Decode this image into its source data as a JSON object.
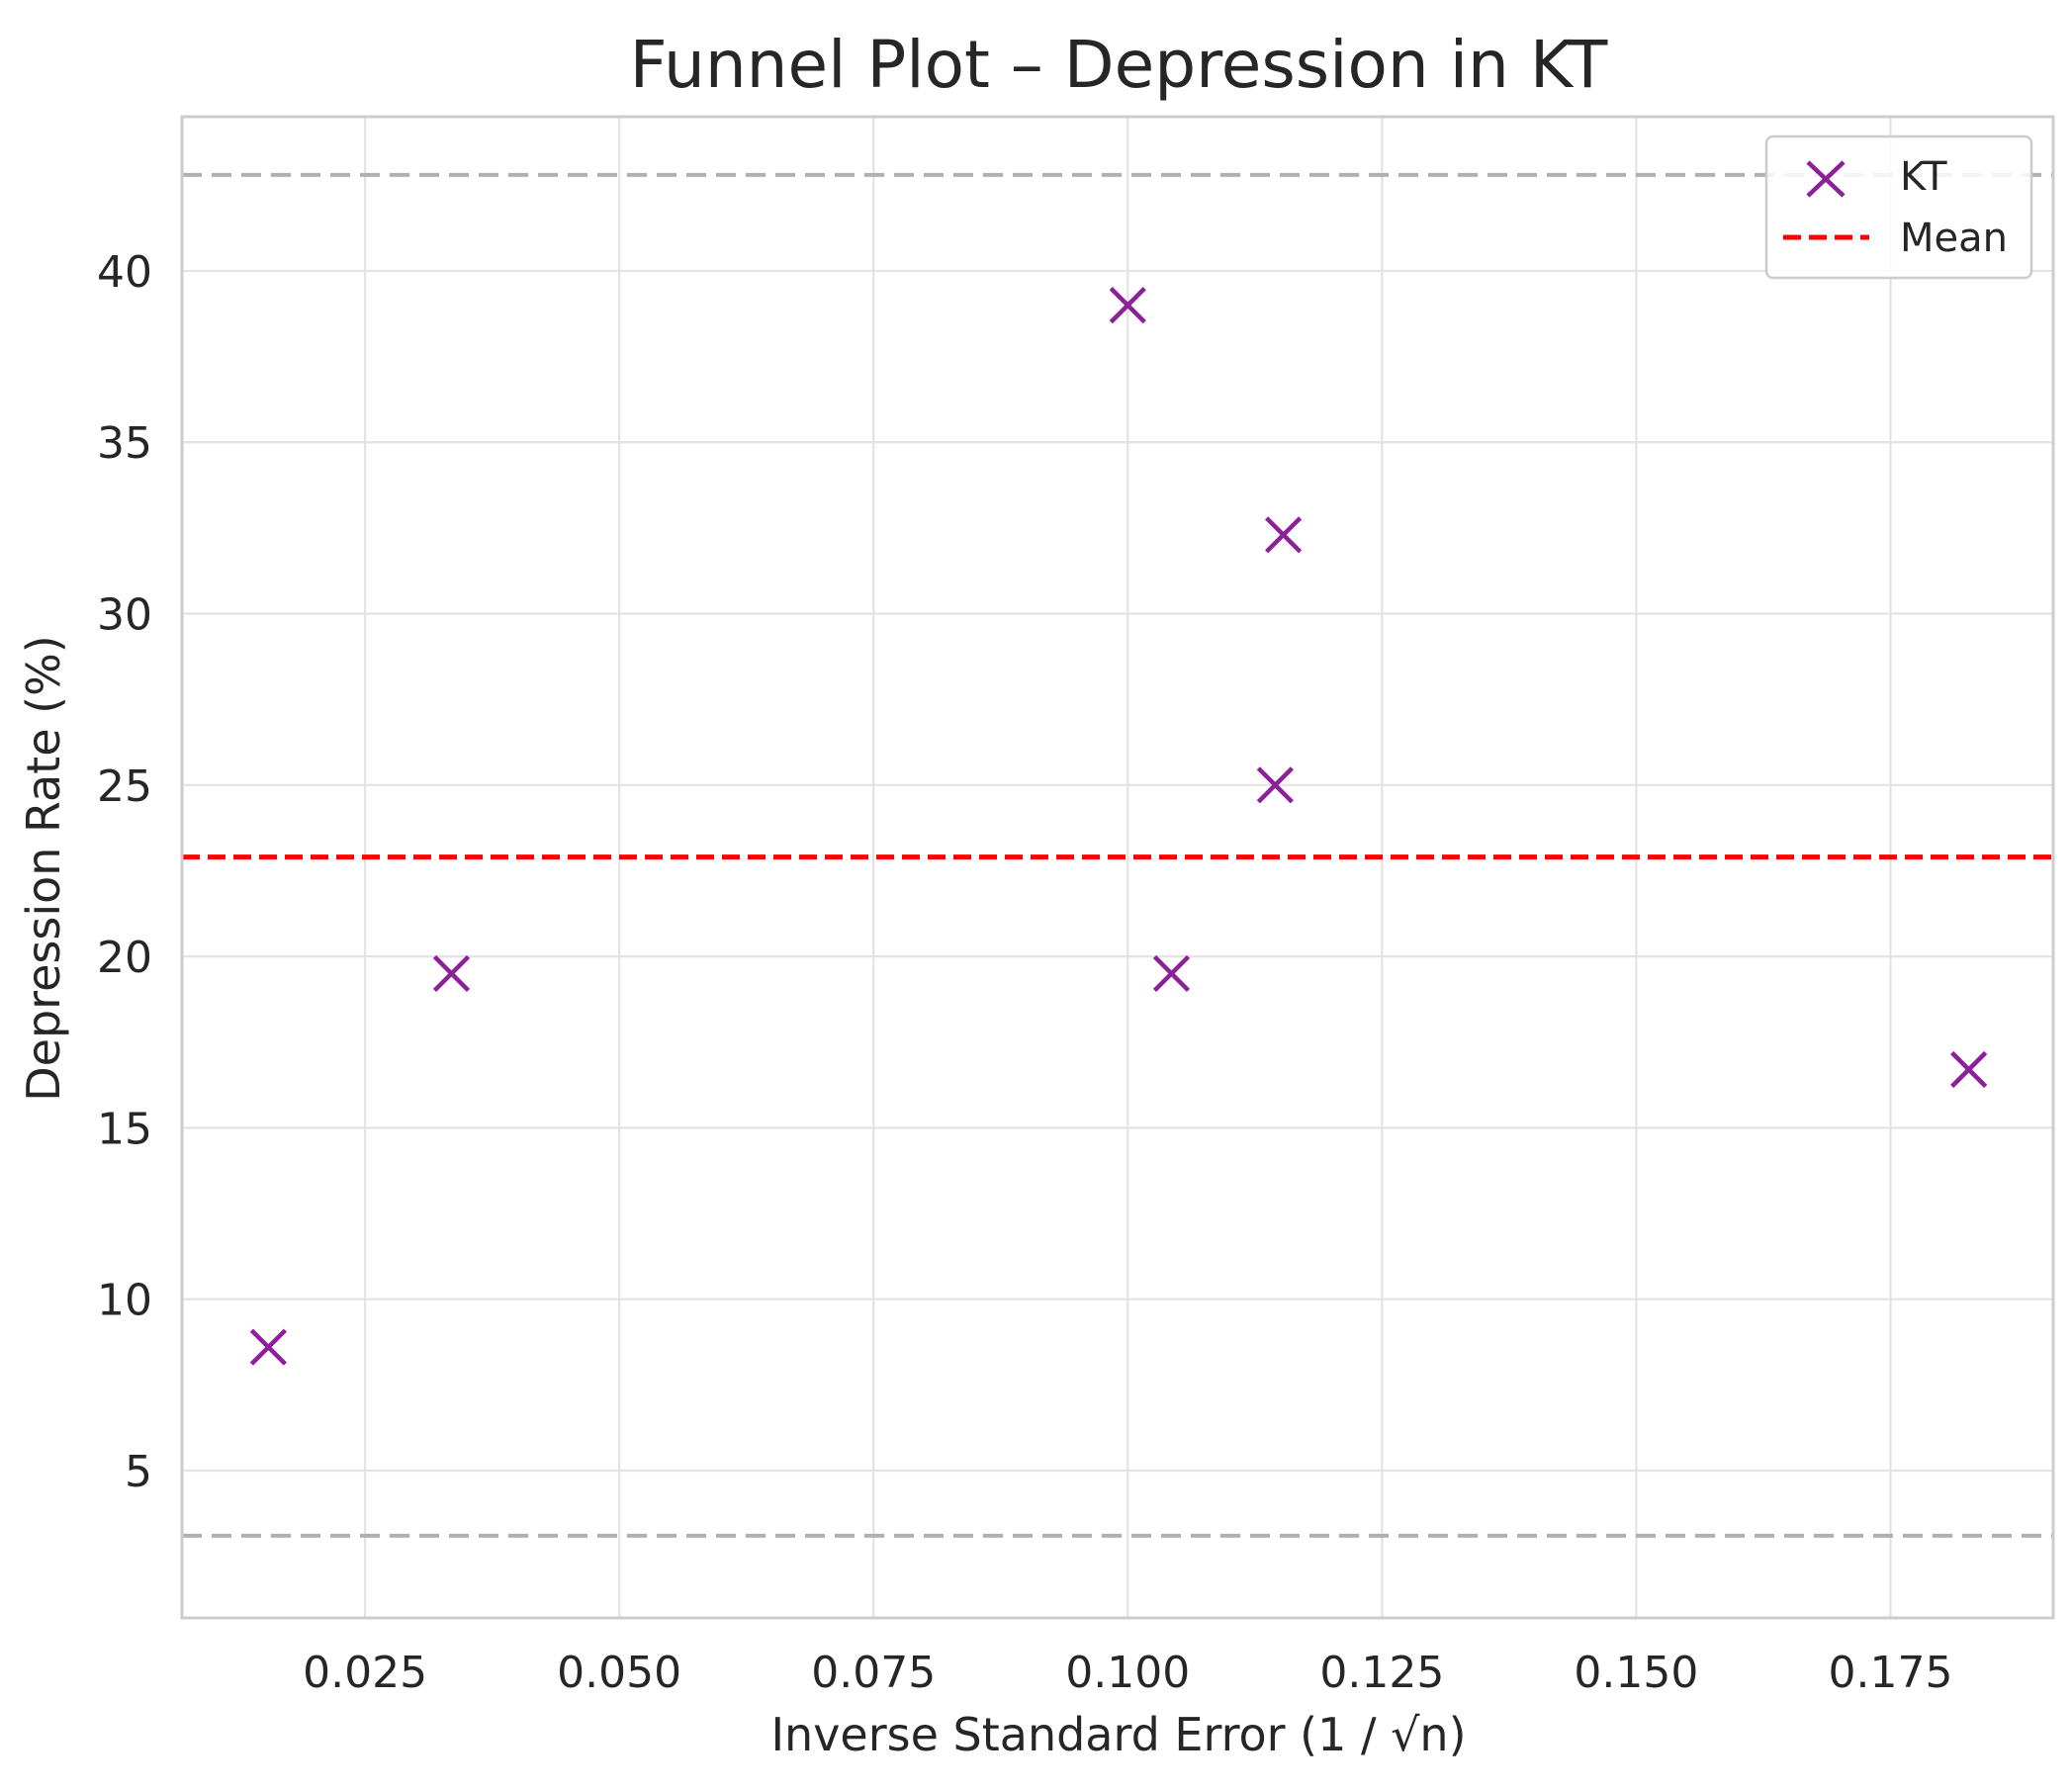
{
  "chart_data": {
    "type": "scatter",
    "title": "Funnel Plot – Depression in KT",
    "xlabel": "Inverse Standard Error (1 / √n)",
    "ylabel": "Depression Rate (%)",
    "xlim": [
      0.007,
      0.191
    ],
    "ylim": [
      0.7,
      44.5
    ],
    "xticks": [
      0.025,
      0.05,
      0.075,
      0.1,
      0.125,
      0.15,
      0.175
    ],
    "xtick_labels": [
      "0.025",
      "0.050",
      "0.075",
      "0.100",
      "0.125",
      "0.150",
      "0.175"
    ],
    "yticks": [
      5,
      10,
      15,
      20,
      25,
      30,
      35,
      40
    ],
    "ytick_labels": [
      "5",
      "10",
      "15",
      "20",
      "25",
      "30",
      "35",
      "40"
    ],
    "grid": true,
    "series": [
      {
        "name": "KT",
        "marker": "x",
        "color": "#8e1f9a",
        "points": [
          {
            "x": 0.0155,
            "y": 8.6
          },
          {
            "x": 0.0335,
            "y": 19.5
          },
          {
            "x": 0.1,
            "y": 39.0
          },
          {
            "x": 0.1043,
            "y": 19.5
          },
          {
            "x": 0.1145,
            "y": 25.0
          },
          {
            "x": 0.1153,
            "y": 32.3
          },
          {
            "x": 0.1827,
            "y": 16.7
          }
        ]
      }
    ],
    "mean_line": {
      "name": "Mean",
      "y": 22.9,
      "color": "#ff0000",
      "style": "dashed"
    },
    "funnel_bounds": {
      "upper": 42.8,
      "lower": 3.1,
      "color": "#b0b0b0",
      "style": "dashed"
    },
    "legend": {
      "position": "top-right",
      "entries": [
        "KT",
        "Mean"
      ]
    }
  }
}
